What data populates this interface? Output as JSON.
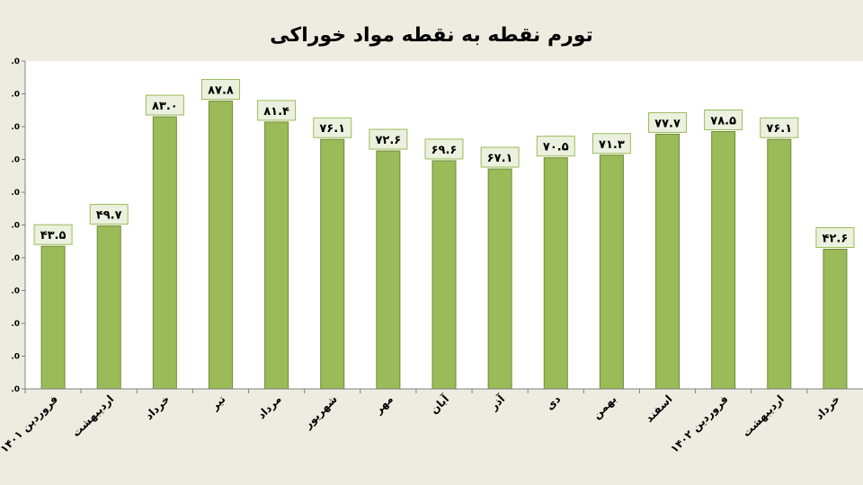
{
  "chart_data": {
    "type": "bar",
    "title": "تورم نقطه به نقطه مواد خوراکی",
    "categories": [
      "فروردین ۱۴۰۱",
      "اردیبهشت",
      "خرداد",
      "تیر",
      "مرداد",
      "شهریور",
      "مهر",
      "آبان",
      "آذر",
      "دی",
      "بهمن",
      "اسفند",
      "فروردین ۱۴۰۲",
      "اردیبهشت",
      "خرداد"
    ],
    "values": [
      43.5,
      49.7,
      83.0,
      87.8,
      81.4,
      76.1,
      72.6,
      69.6,
      67.1,
      70.5,
      71.3,
      77.7,
      78.5,
      76.1,
      42.6
    ],
    "data_labels": [
      "۴۳.۵",
      "۴۹.۷",
      "۸۳.۰",
      "۸۷.۸",
      "۸۱.۴",
      "۷۶.۱",
      "۷۲.۶",
      "۶۹.۶",
      "۶۷.۱",
      "۷۰.۵",
      "۷۱.۳",
      "۷۷.۷",
      "۷۸.۵",
      "۷۶.۱",
      "۴۲.۶"
    ],
    "ylim": [
      0,
      100
    ],
    "y_ticks": [
      ".0",
      ".0",
      ".0",
      ".0",
      ".0",
      ".0",
      ".0",
      ".0",
      ".0",
      ".0",
      ".0"
    ],
    "grid": false,
    "legend": "none",
    "xlabel": "",
    "ylabel": "",
    "colors": {
      "bar_fill": "#9bbb59",
      "bar_stroke": "#6f8a36",
      "label_box": "#ebf1de",
      "label_border": "#9bbb59",
      "plot_bg": "#ffffff",
      "page_bg": "#eeece1"
    }
  }
}
